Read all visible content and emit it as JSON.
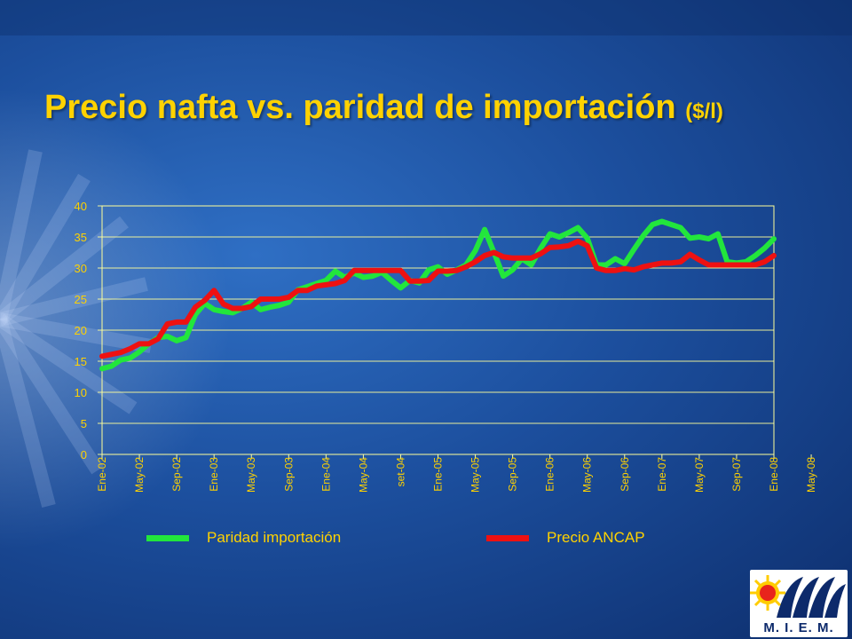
{
  "title": "Precio nafta vs. paridad de importación",
  "title_unit": "($/l)",
  "logo_text": "M. I. E. M.",
  "colors": {
    "title": "#ffd200",
    "axis_text": "#ffd200",
    "paridad": "#22e63c",
    "ancap": "#ee1111",
    "gridline": "#ffff99"
  },
  "chart_data": {
    "type": "line",
    "ylim": [
      0,
      40
    ],
    "yticks": [
      0,
      5,
      10,
      15,
      20,
      25,
      30,
      35,
      40
    ],
    "grid": true,
    "legend_position": "bottom",
    "x_tick_labels": [
      "Ene-02",
      "May-02",
      "Sep-02",
      "Ene-03",
      "May-03",
      "Sep-03",
      "Ene-04",
      "May-04",
      "set-04",
      "Ene-05",
      "May-05",
      "Sep-05",
      "Ene-06",
      "May-06",
      "Sep-06",
      "Ene-07",
      "May-07",
      "Sep-07",
      "Ene-08",
      "May-08"
    ],
    "x_tick_interval_months": 4,
    "series": [
      {
        "name": "Paridad importación",
        "values": [
          13.8,
          14.2,
          15.2,
          15.5,
          16.5,
          17.8,
          18.8,
          19.0,
          18.3,
          18.8,
          22.5,
          24.3,
          23.3,
          23.0,
          22.8,
          23.5,
          24.5,
          23.3,
          23.7,
          24.0,
          24.5,
          26.5,
          27.0,
          27.5,
          28.0,
          29.5,
          28.5,
          29.2,
          28.5,
          28.7,
          29.3,
          28.0,
          26.8,
          28.0,
          27.6,
          29.7,
          30.2,
          29.0,
          29.7,
          30.5,
          32.8,
          36.2,
          32.5,
          28.7,
          29.7,
          31.5,
          30.5,
          33.2,
          35.5,
          35.0,
          35.7,
          36.5,
          34.8,
          30.5,
          30.5,
          31.5,
          30.7,
          33.0,
          35.2,
          37.0,
          37.5,
          37.0,
          36.5,
          34.8,
          35.0,
          34.7,
          35.5,
          31.0,
          30.8,
          31.0,
          32.0,
          33.2,
          34.7
        ]
      },
      {
        "name": "Precio ANCAP",
        "values": [
          15.8,
          16.1,
          16.4,
          17.0,
          17.8,
          17.8,
          18.6,
          21.0,
          21.3,
          21.3,
          23.7,
          24.8,
          26.4,
          24.2,
          23.5,
          23.5,
          23.8,
          25.0,
          25.0,
          25.0,
          25.3,
          26.4,
          26.4,
          27.1,
          27.3,
          27.5,
          28.0,
          29.6,
          29.6,
          29.6,
          29.6,
          29.6,
          29.6,
          27.9,
          27.9,
          28.0,
          29.5,
          29.5,
          29.6,
          30.2,
          31.0,
          32.0,
          32.5,
          31.8,
          31.6,
          31.6,
          31.6,
          32.3,
          33.3,
          33.4,
          33.6,
          34.3,
          33.6,
          30.0,
          29.6,
          29.6,
          29.9,
          29.7,
          30.2,
          30.5,
          30.8,
          30.8,
          31.0,
          32.2,
          31.3,
          30.5,
          30.5,
          30.5,
          30.5,
          30.5,
          30.5,
          31.0,
          32.0
        ]
      }
    ]
  }
}
